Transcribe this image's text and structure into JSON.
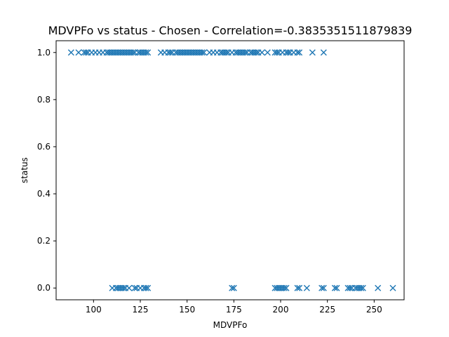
{
  "chart_data": {
    "type": "scatter",
    "title": "MDVPFo vs status - Chosen - Correlation=-0.3835351511879839",
    "xlabel": "MDVPFo",
    "ylabel": "status",
    "xlim": [
      80,
      266
    ],
    "ylim": [
      -0.05,
      1.05
    ],
    "xticks": [
      100,
      125,
      150,
      175,
      200,
      225,
      250
    ],
    "yticks": [
      0.0,
      0.2,
      0.4,
      0.6,
      0.8,
      1.0
    ],
    "xtick_labels": [
      "100",
      "125",
      "150",
      "175",
      "200",
      "225",
      "250"
    ],
    "ytick_labels": [
      "0.0",
      "0.2",
      "0.4",
      "0.6",
      "0.8",
      "1.0"
    ],
    "grid": false,
    "marker": "x",
    "color": "#1f77b4",
    "series": [
      {
        "x": [
          88,
          92,
          95,
          96,
          97,
          99,
          101,
          103,
          105,
          107,
          108,
          109,
          110,
          111,
          112,
          113,
          114,
          115,
          116,
          117,
          118,
          119,
          120,
          121,
          122,
          124,
          125,
          126,
          127,
          128,
          129,
          136,
          138,
          140,
          141,
          142,
          144,
          145,
          146,
          147,
          148,
          149,
          150,
          151,
          152,
          153,
          154,
          155,
          156,
          157,
          158,
          159,
          162,
          164,
          166,
          168,
          169,
          170,
          171,
          172,
          174,
          176,
          177,
          178,
          179,
          180,
          181,
          182,
          184,
          185,
          186,
          187,
          188,
          190,
          193,
          197,
          198,
          199,
          201,
          203,
          204,
          205,
          207,
          209,
          210,
          217,
          223
        ],
        "y": [
          1,
          1,
          1,
          1,
          1,
          1,
          1,
          1,
          1,
          1,
          1,
          1,
          1,
          1,
          1,
          1,
          1,
          1,
          1,
          1,
          1,
          1,
          1,
          1,
          1,
          1,
          1,
          1,
          1,
          1,
          1,
          1,
          1,
          1,
          1,
          1,
          1,
          1,
          1,
          1,
          1,
          1,
          1,
          1,
          1,
          1,
          1,
          1,
          1,
          1,
          1,
          1,
          1,
          1,
          1,
          1,
          1,
          1,
          1,
          1,
          1,
          1,
          1,
          1,
          1,
          1,
          1,
          1,
          1,
          1,
          1,
          1,
          1,
          1,
          1,
          1,
          1,
          1,
          1,
          1,
          1,
          1,
          1,
          1,
          1,
          1,
          1
        ]
      },
      {
        "x": [
          110,
          112,
          113,
          114,
          115,
          116,
          117,
          119,
          122,
          123,
          125,
          127,
          128,
          129,
          174,
          175,
          197,
          198,
          199,
          200,
          201,
          202,
          203,
          209,
          210,
          214,
          222,
          223,
          229,
          230,
          236,
          237,
          238,
          240,
          241,
          242,
          243,
          244,
          252,
          260
        ],
        "y": [
          0,
          0,
          0,
          0,
          0,
          0,
          0,
          0,
          0,
          0,
          0,
          0,
          0,
          0,
          0,
          0,
          0,
          0,
          0,
          0,
          0,
          0,
          0,
          0,
          0,
          0,
          0,
          0,
          0,
          0,
          0,
          0,
          0,
          0,
          0,
          0,
          0,
          0,
          0,
          0
        ]
      }
    ]
  }
}
